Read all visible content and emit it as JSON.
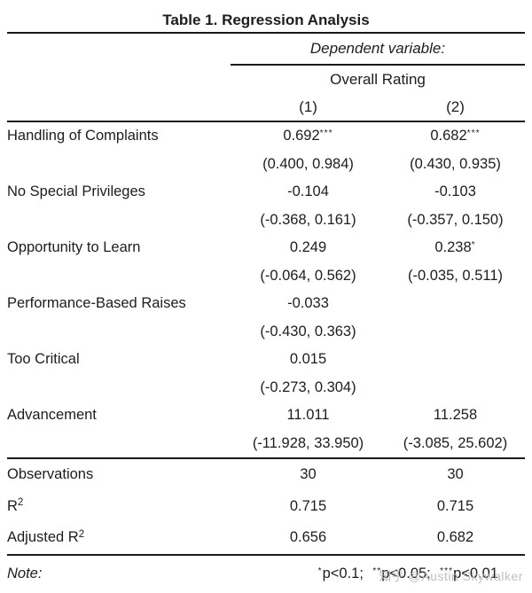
{
  "title": "Table 1. Regression Analysis",
  "header": {
    "dependent_variable": "Dependent variable:",
    "dv_group": "Overall Rating",
    "model_labels": [
      "(1)",
      "(2)"
    ]
  },
  "body_rows": [
    {
      "label": "Handling of Complaints",
      "m1_coef": "0.692",
      "m1_stars": "***",
      "m1_ci": "(0.400, 0.984)",
      "m2_coef": "0.682",
      "m2_stars": "***",
      "m2_ci": "(0.430, 0.935)"
    },
    {
      "label": "No Special Privileges",
      "m1_coef": "-0.104",
      "m1_stars": "",
      "m1_ci": "(-0.368, 0.161)",
      "m2_coef": "-0.103",
      "m2_stars": "",
      "m2_ci": "(-0.357, 0.150)"
    },
    {
      "label": "Opportunity to Learn",
      "m1_coef": "0.249",
      "m1_stars": "",
      "m1_ci": "(-0.064, 0.562)",
      "m2_coef": "0.238",
      "m2_stars": "*",
      "m2_ci": "(-0.035, 0.511)"
    },
    {
      "label": "Performance-Based Raises",
      "m1_coef": "-0.033",
      "m1_stars": "",
      "m1_ci": "(-0.430, 0.363)",
      "m2_coef": "",
      "m2_stars": "",
      "m2_ci": ""
    },
    {
      "label": "Too Critical",
      "m1_coef": "0.015",
      "m1_stars": "",
      "m1_ci": "(-0.273, 0.304)",
      "m2_coef": "",
      "m2_stars": "",
      "m2_ci": ""
    },
    {
      "label": "Advancement",
      "m1_coef": "11.011",
      "m1_stars": "",
      "m1_ci": "(-11.928, 33.950)",
      "m2_coef": "11.258",
      "m2_stars": "",
      "m2_ci": "(-3.085, 25.602)"
    }
  ],
  "stats_rows": [
    {
      "label": "Observations",
      "sup": "",
      "v1": "30",
      "v2": "30"
    },
    {
      "label": "R",
      "sup": "2",
      "v1": "0.715",
      "v2": "0.715"
    },
    {
      "label": "Adjusted R",
      "sup": "2",
      "v1": "0.656",
      "v2": "0.682"
    }
  ],
  "note": {
    "label": "Note:",
    "seg1_stars": "*",
    "seg1_text": "p<0.1;",
    "seg2_stars": "**",
    "seg2_text": "p<0.05;",
    "seg3_stars": "***",
    "seg3_text": "p<0.01"
  },
  "watermark": "知乎 @Austin Skywalker",
  "colors": {
    "text": "#1d1d1f",
    "rule": "#1a1a1a",
    "watermark": "#b5b5b5",
    "background": "#ffffff"
  }
}
